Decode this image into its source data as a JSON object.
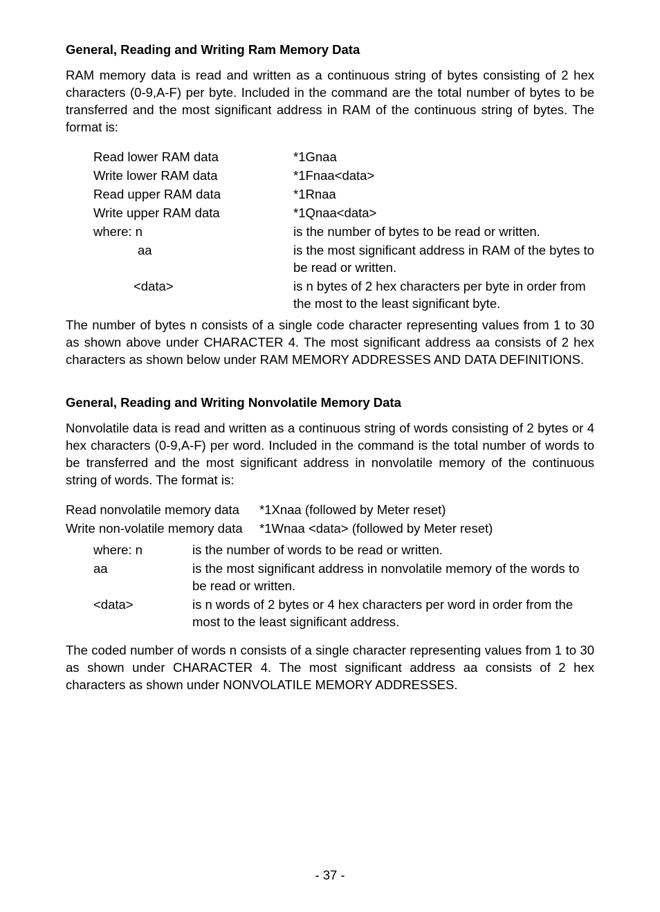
{
  "section1": {
    "heading": "General, Reading and Writing Ram Memory Data",
    "para": "RAM memory data is read and written as a continuous string of bytes consisting of 2 hex characters (0-9,A-F) per byte. Included in the command are the total number of bytes to be transferred and the most significant address in RAM of the continuous string of bytes. The format is:",
    "rows": [
      {
        "label": "Read lower RAM data",
        "value": "*1Gnaa"
      },
      {
        "label": "Write lower RAM data",
        "value": "*1Fnaa<data>"
      },
      {
        "label": "Read upper RAM data",
        "value": "*1Rnaa"
      },
      {
        "label": "Write upper RAM data",
        "value": "*1Qnaa<data>"
      }
    ],
    "where_label": "where: n",
    "where_value": "is the number of bytes to be read or written.",
    "aa_label": "aa",
    "aa_value": "is the most significant address in RAM of the bytes to be read or written.",
    "data_label": "<data>",
    "data_value": "is n bytes of 2 hex characters per byte in order from the most to the least significant byte.",
    "tail": "The number of bytes n consists of a single code character representing values from 1 to 30 as shown above under CHARACTER 4. The most significant address aa consists of 2 hex characters as shown below under RAM MEMORY ADDRESSES AND DATA DEFINITIONS."
  },
  "section2": {
    "heading": "General, Reading and Writing Nonvolatile Memory Data",
    "para": "Nonvolatile data is read and written as a continuous string of words consisting of 2 bytes or 4 hex characters (0-9,A-F) per word.  Included in the command is the total number of words to be transferred and the most significant address in nonvolatile memory of the continuous string of words.  The format is:",
    "read_label": "Read nonvolatile memory data",
    "read_value": "*1Xnaa   (followed by Meter reset)",
    "write_label": "Write non-volatile memory data",
    "write_value": "*1Wnaa <data>  (followed by Meter reset)",
    "where_label": "where: n",
    "where_value": "is the number of words to be read or written.",
    "aa_label": "aa",
    "aa_value": "is the most significant address in nonvolatile memory of the words to be read or written.",
    "data_label": "<data>",
    "data_value": "is n words of 2 bytes or 4 hex characters per word in order from the most to the  least significant address.",
    "tail": "The coded number of words n consists of a single character representing values from 1 to 30 as shown under CHARACTER 4. The most significant address aa consists of 2 hex characters as shown under NONVOLATILE MEMORY ADDRESSES."
  },
  "pagenum": "- 37 -"
}
